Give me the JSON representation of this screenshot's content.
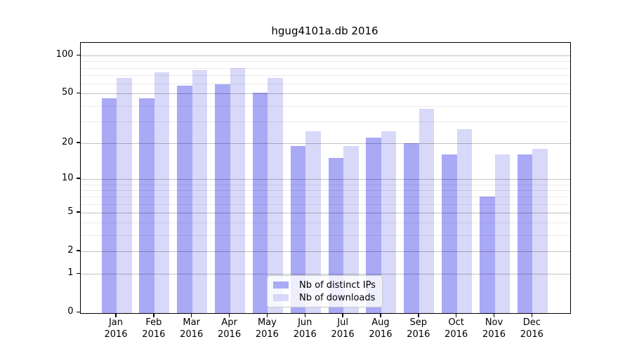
{
  "title": "hgug4101a.db 2016",
  "chart_data": {
    "type": "bar",
    "title": "hgug4101a.db 2016",
    "categories": [
      "Jan",
      "Feb",
      "Mar",
      "Apr",
      "May",
      "Jun",
      "Jul",
      "Aug",
      "Sep",
      "Oct",
      "Nov",
      "Dec"
    ],
    "x_year_label": "2016",
    "series": [
      {
        "name": "Nb of distinct IPs",
        "color": "#a9a9f6",
        "values": [
          46,
          46,
          58,
          59,
          51,
          19,
          15,
          22,
          20,
          16,
          7,
          16
        ]
      },
      {
        "name": "Nb of downloads",
        "color": "#d8d8f8",
        "values": [
          67,
          74,
          77,
          80,
          67,
          25,
          19,
          25,
          38,
          26,
          16,
          18
        ]
      }
    ],
    "y_axis": {
      "scale": "log1p",
      "major_ticks": [
        100,
        50,
        20,
        10,
        5,
        2,
        1,
        0
      ],
      "minor_gridlines": [
        90,
        80,
        70,
        60,
        40,
        30,
        9,
        8,
        7,
        6,
        4,
        3
      ],
      "range": [
        0,
        115
      ]
    },
    "legend_position": "bottom-center",
    "grid": true,
    "colors": {
      "axis": "#000000",
      "major_grid": "rgba(0,0,0,0.24)",
      "minor_grid": "rgba(0,0,0,0.08)"
    }
  }
}
